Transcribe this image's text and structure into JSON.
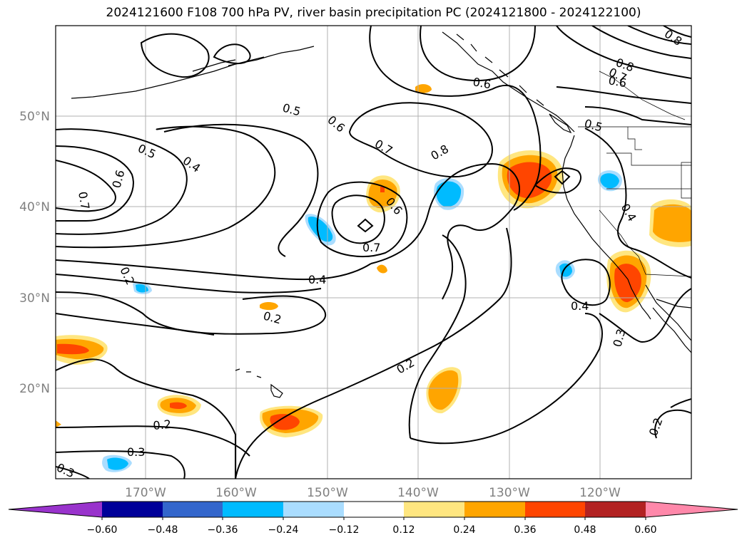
{
  "title": "2024121600 F108 700 hPa PV, river basin precipitation PC (2024121800 - 2024122100)",
  "lat_labels": [
    "50°N",
    "40°N",
    "30°N",
    "20°N"
  ],
  "lon_labels": [
    "170°W",
    "160°W",
    "150°W",
    "140°W",
    "130°W",
    "120°W"
  ],
  "contour_labels": {
    "c1": "0.7",
    "c2": "0.6",
    "c3": "0.5",
    "c4": "0.4",
    "c5": "0.5",
    "c6": "0.6",
    "c7": "0.7",
    "c8": "0.8",
    "c9": "0.6",
    "c10": "0.7",
    "c11": "0.4",
    "c12": "0.2",
    "c13": "0.2",
    "c14": "0.2",
    "c15": "0.2",
    "c16": "0.3",
    "c17": "0.3",
    "c18": "0.4",
    "c19": "0.3",
    "c20": "0.2",
    "c21": "0.8",
    "c22": "0.7",
    "c23": "0.6",
    "c24": "0.5",
    "c25": "0.4",
    "c26": "0.8",
    "c27": "0.6"
  },
  "colorbar": {
    "ticks": [
      "−0.60",
      "−0.48",
      "−0.36",
      "−0.24",
      "−0.12",
      "0.12",
      "0.24",
      "0.36",
      "0.48",
      "0.60"
    ],
    "colors": [
      "#9933cc",
      "#000099",
      "#3366cc",
      "#00bbff",
      "#aaddff",
      "#ffffff",
      "#ffe680",
      "#ffa500",
      "#ff4500",
      "#b22222",
      "#ff88aa",
      "#ff88aa"
    ]
  },
  "legend_colors": {
    "neg_light": "#aaddff",
    "neg_mid": "#00bbff",
    "pos_light": "#ffe680",
    "pos_mid": "#ffa500",
    "pos_strong": "#ff4500"
  }
}
